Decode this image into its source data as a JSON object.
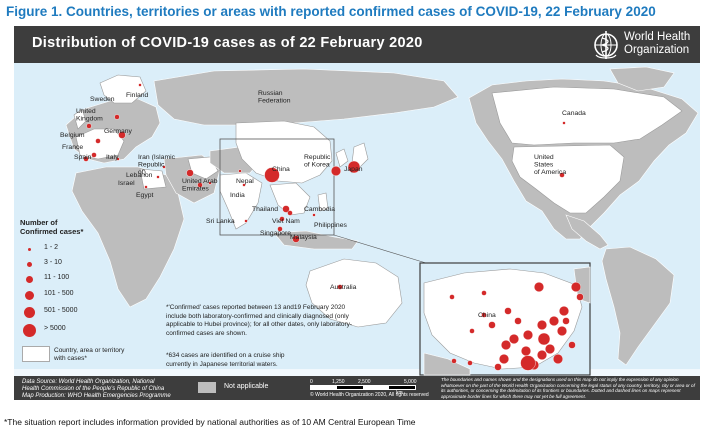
{
  "figure_title": "Figure 1. Countries, territories or areas with reported confirmed cases of COVID-19, 22 February 2020",
  "map_title": "Distribution of COVID-19 cases as of 22 February 2020",
  "logo": {
    "icon": "who-emblem-icon",
    "name": "World Health\nOrganization"
  },
  "colors": {
    "case_dot": "#d42a2a",
    "land": "#bdbdbd",
    "ocean": "#dbeef9",
    "bar": "#3d3d3d",
    "title": "#1f7bbf"
  },
  "map_labels": [
    {
      "key": "sweden",
      "text": "Sweden"
    },
    {
      "key": "finland",
      "text": "Finland"
    },
    {
      "key": "russia",
      "text": "Russian\nFederation"
    },
    {
      "key": "canada",
      "text": "Canada"
    },
    {
      "key": "uk",
      "text": "United\nKingdom"
    },
    {
      "key": "belgium",
      "text": "Belgium"
    },
    {
      "key": "germany",
      "text": "Germany"
    },
    {
      "key": "france",
      "text": "France"
    },
    {
      "key": "spain",
      "text": "Spain"
    },
    {
      "key": "italy",
      "text": "Italy"
    },
    {
      "key": "iran",
      "text": "Iran (Islamic\nRepublic\nof)"
    },
    {
      "key": "lebanon",
      "text": "Lebanon"
    },
    {
      "key": "israel",
      "text": "Israel"
    },
    {
      "key": "egypt",
      "text": "Egypt"
    },
    {
      "key": "uae",
      "text": "United Arab\nEmirates"
    },
    {
      "key": "nepal",
      "text": "Nepal"
    },
    {
      "key": "india",
      "text": "India"
    },
    {
      "key": "china",
      "text": "China"
    },
    {
      "key": "korea",
      "text": "Republic\nof Korea"
    },
    {
      "key": "japan",
      "text": "Japan"
    },
    {
      "key": "usa",
      "text": "United\nStates\nof America"
    },
    {
      "key": "thailand",
      "text": "Thailand"
    },
    {
      "key": "cambodia",
      "text": "Cambodia"
    },
    {
      "key": "vietnam",
      "text": "Viet Nam"
    },
    {
      "key": "philippines",
      "text": "Philippines"
    },
    {
      "key": "srilanka",
      "text": "Sri Lanka"
    },
    {
      "key": "singapore",
      "text": "Singapore"
    },
    {
      "key": "malaysia",
      "text": "Malaysia"
    },
    {
      "key": "australia",
      "text": "Australia"
    },
    {
      "key": "inset_china",
      "text": "China"
    }
  ],
  "legend": {
    "title": "Number of\nConfirmed cases*",
    "items": [
      {
        "label": "1 - 2",
        "size": 1
      },
      {
        "label": "3 - 10",
        "size": 2
      },
      {
        "label": "11 - 100",
        "size": 3
      },
      {
        "label": "101 - 500",
        "size": 4
      },
      {
        "label": "501 - 5000",
        "size": 5
      },
      {
        "label": "> 5000",
        "size": 6
      }
    ],
    "area_label": "Country, area or territory\nwith cases*"
  },
  "notes": {
    "confirmed": "*'Confirmed' cases reported between 13 and19 February 2020\ninclude both laboratory-confirmed and clinically diagnosed (only\napplicable to Hubei province); for all other dates, only laboratory-\nconfirmed cases are shown.",
    "cruise": "*634 cases are identified on a cruise ship\ncurrently in Japanese territorial waters."
  },
  "footer": {
    "source": "Data Source: World Health Organization, National\nHealth Commission of the People's Republic of China\nMap Production: WHO Health Emergencies Programme",
    "not_applicable": "Not applicable",
    "scale": {
      "labels": [
        "0",
        "1,250",
        "2,500",
        "5,000"
      ],
      "unit": "km"
    },
    "copyright": "© World Health Organization 2020, All rights reserved",
    "disclaimer": "The boundaries and names shown and the designations used on this map do not imply the expression of any opinion whatsoever on the part of the World Health Organization concerning the legal status of any country, territory, city or area or of its authorities, or concerning the delimitation of its frontiers or boundaries. Dotted and dashed lines on maps represent approximate border lines for which there may not yet be full agreement."
  },
  "bottom_note": "*The situation report includes information provided by national authorities as of 10 AM Central European Time"
}
